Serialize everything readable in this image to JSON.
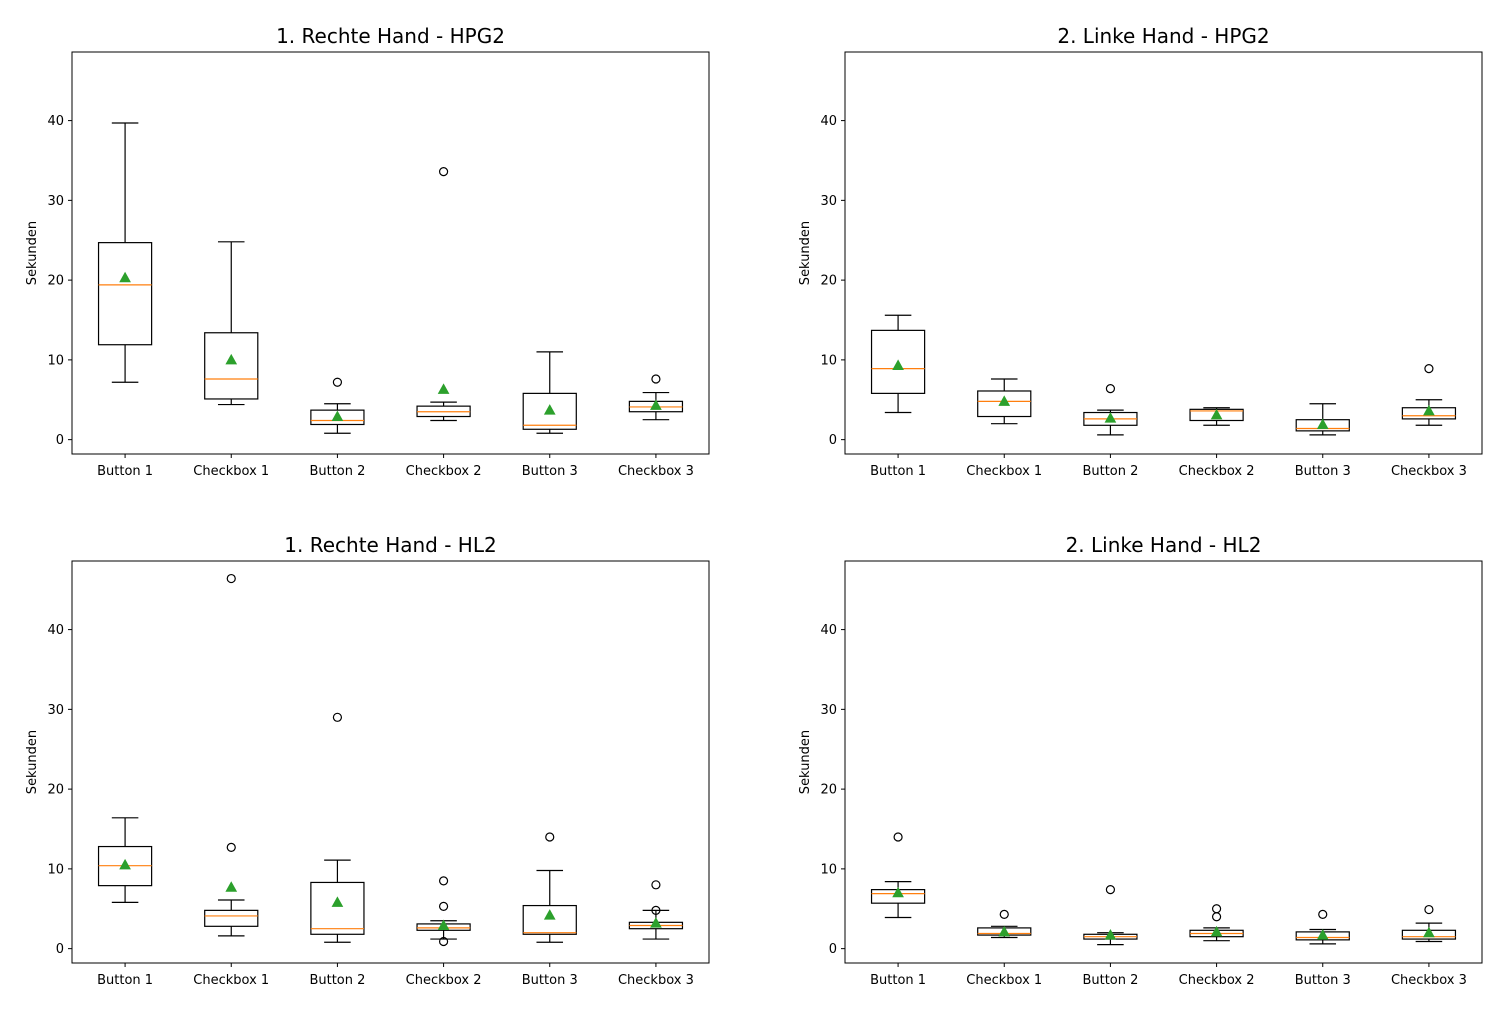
{
  "chart_data": [
    {
      "type": "box",
      "title": "1. Rechte Hand - HPG2",
      "ylabel": "Sekunden",
      "xlabel": "",
      "ylim": [
        -1.8,
        48.6
      ],
      "yticks": [
        0,
        10,
        20,
        30,
        40
      ],
      "categories": [
        "Button 1",
        "Checkbox 1",
        "Button 2",
        "Checkbox 2",
        "Button 3",
        "Checkbox 3"
      ],
      "boxes": [
        {
          "whislo": 7.2,
          "q1": 11.9,
          "med": 19.4,
          "q3": 24.7,
          "whishi": 39.7,
          "mean": 20.3,
          "fliers": []
        },
        {
          "whislo": 4.4,
          "q1": 5.1,
          "med": 7.6,
          "q3": 13.4,
          "whishi": 24.8,
          "mean": 10.0,
          "fliers": []
        },
        {
          "whislo": 0.8,
          "q1": 1.9,
          "med": 2.4,
          "q3": 3.7,
          "whishi": 4.5,
          "mean": 2.9,
          "fliers": [
            7.2
          ]
        },
        {
          "whislo": 2.4,
          "q1": 2.9,
          "med": 3.5,
          "q3": 4.2,
          "whishi": 4.7,
          "mean": 6.3,
          "fliers": [
            33.6
          ]
        },
        {
          "whislo": 0.8,
          "q1": 1.3,
          "med": 1.8,
          "q3": 5.8,
          "whishi": 11.0,
          "mean": 3.7,
          "fliers": []
        },
        {
          "whislo": 2.5,
          "q1": 3.5,
          "med": 4.1,
          "q3": 4.8,
          "whishi": 5.9,
          "mean": 4.3,
          "fliers": [
            7.6
          ]
        }
      ]
    },
    {
      "type": "box",
      "title": "2. Linke Hand - HPG2",
      "ylabel": "Sekunden",
      "xlabel": "",
      "ylim": [
        -1.8,
        48.6
      ],
      "yticks": [
        0,
        10,
        20,
        30,
        40
      ],
      "categories": [
        "Button 1",
        "Checkbox 1",
        "Button 2",
        "Checkbox 2",
        "Button 3",
        "Checkbox 3"
      ],
      "boxes": [
        {
          "whislo": 3.4,
          "q1": 5.8,
          "med": 8.9,
          "q3": 13.7,
          "whishi": 15.6,
          "mean": 9.3,
          "fliers": []
        },
        {
          "whislo": 2.0,
          "q1": 2.9,
          "med": 4.8,
          "q3": 6.1,
          "whishi": 7.6,
          "mean": 4.8,
          "fliers": []
        },
        {
          "whislo": 0.6,
          "q1": 1.8,
          "med": 2.6,
          "q3": 3.4,
          "whishi": 3.7,
          "mean": 2.7,
          "fliers": [
            6.4
          ]
        },
        {
          "whislo": 1.8,
          "q1": 2.4,
          "med": 3.6,
          "q3": 3.8,
          "whishi": 4.0,
          "mean": 3.1,
          "fliers": []
        },
        {
          "whislo": 0.6,
          "q1": 1.1,
          "med": 1.4,
          "q3": 2.5,
          "whishi": 4.5,
          "mean": 1.9,
          "fliers": []
        },
        {
          "whislo": 1.8,
          "q1": 2.6,
          "med": 3.0,
          "q3": 4.0,
          "whishi": 5.0,
          "mean": 3.6,
          "fliers": [
            8.9
          ]
        }
      ]
    },
    {
      "type": "box",
      "title": "1. Rechte Hand - HL2",
      "ylabel": "Sekunden",
      "xlabel": "",
      "ylim": [
        -1.8,
        48.6
      ],
      "yticks": [
        0,
        10,
        20,
        30,
        40
      ],
      "categories": [
        "Button 1",
        "Checkbox 1",
        "Button 2",
        "Checkbox 2",
        "Button 3",
        "Checkbox 3"
      ],
      "boxes": [
        {
          "whislo": 5.8,
          "q1": 7.9,
          "med": 10.4,
          "q3": 12.8,
          "whishi": 16.4,
          "mean": 10.5,
          "fliers": []
        },
        {
          "whislo": 1.6,
          "q1": 2.8,
          "med": 4.1,
          "q3": 4.8,
          "whishi": 6.1,
          "mean": 7.7,
          "fliers": [
            12.7,
            46.4
          ]
        },
        {
          "whislo": 0.8,
          "q1": 1.8,
          "med": 2.5,
          "q3": 8.3,
          "whishi": 11.1,
          "mean": 5.8,
          "fliers": [
            29.0
          ]
        },
        {
          "whislo": 1.2,
          "q1": 2.3,
          "med": 2.6,
          "q3": 3.1,
          "whishi": 3.5,
          "mean": 2.9,
          "fliers": [
            0.9,
            5.3,
            8.5
          ]
        },
        {
          "whislo": 0.8,
          "q1": 1.8,
          "med": 2.0,
          "q3": 5.4,
          "whishi": 9.8,
          "mean": 4.2,
          "fliers": [
            14.0
          ]
        },
        {
          "whislo": 1.2,
          "q1": 2.5,
          "med": 2.9,
          "q3": 3.3,
          "whishi": 4.8,
          "mean": 3.2,
          "fliers": [
            4.8,
            8.0
          ]
        }
      ]
    },
    {
      "type": "box",
      "title": "2. Linke Hand - HL2",
      "ylabel": "Sekunden",
      "xlabel": "",
      "ylim": [
        -1.8,
        48.6
      ],
      "yticks": [
        0,
        10,
        20,
        30,
        40
      ],
      "categories": [
        "Button 1",
        "Checkbox 1",
        "Button 2",
        "Checkbox 2",
        "Button 3",
        "Checkbox 3"
      ],
      "boxes": [
        {
          "whislo": 3.9,
          "q1": 5.7,
          "med": 6.9,
          "q3": 7.4,
          "whishi": 8.4,
          "mean": 7.0,
          "fliers": [
            14.0
          ]
        },
        {
          "whislo": 1.4,
          "q1": 1.7,
          "med": 1.9,
          "q3": 2.6,
          "whishi": 2.8,
          "mean": 2.1,
          "fliers": [
            4.3
          ]
        },
        {
          "whislo": 0.5,
          "q1": 1.2,
          "med": 1.5,
          "q3": 1.8,
          "whishi": 2.0,
          "mean": 1.7,
          "fliers": [
            7.4
          ]
        },
        {
          "whislo": 1.0,
          "q1": 1.5,
          "med": 1.9,
          "q3": 2.3,
          "whishi": 2.6,
          "mean": 2.1,
          "fliers": [
            4.0,
            5.0
          ]
        },
        {
          "whislo": 0.6,
          "q1": 1.1,
          "med": 1.4,
          "q3": 2.1,
          "whishi": 2.4,
          "mean": 1.7,
          "fliers": [
            4.3
          ]
        },
        {
          "whislo": 0.9,
          "q1": 1.2,
          "med": 1.5,
          "q3": 2.3,
          "whishi": 3.2,
          "mean": 2.0,
          "fliers": [
            4.9
          ]
        }
      ]
    }
  ],
  "colors": {
    "box": "#000000",
    "median": "#ff7f0e",
    "mean_marker": "#2ca02c",
    "flier_edge": "#000000",
    "background": "#ffffff"
  }
}
